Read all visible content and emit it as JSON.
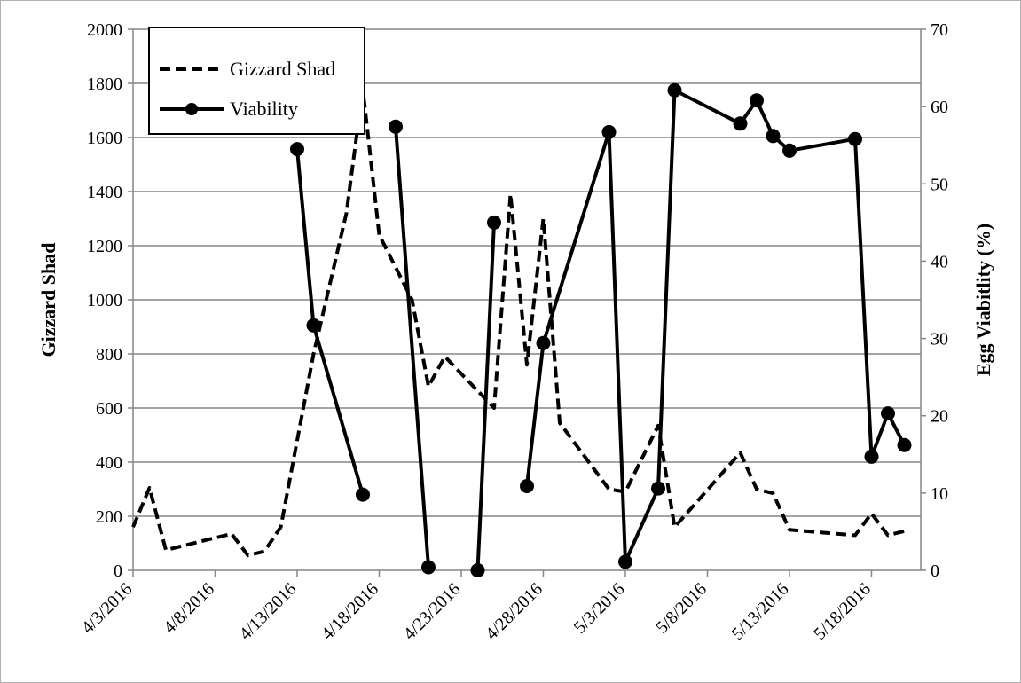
{
  "chart_data": {
    "type": "line",
    "title": "",
    "x_axis": {
      "type": "date",
      "range": [
        "2016-04-03",
        "2016-05-21"
      ],
      "tick_labels": [
        "4/3/2016",
        "4/8/2016",
        "4/13/2016",
        "4/18/2016",
        "4/23/2016",
        "4/28/2016",
        "5/3/2016",
        "5/8/2016",
        "5/13/2016",
        "5/18/2016"
      ],
      "tick_dates": [
        "2016-04-03",
        "2016-04-08",
        "2016-04-13",
        "2016-04-18",
        "2016-04-23",
        "2016-04-28",
        "2016-05-03",
        "2016-05-08",
        "2016-05-13",
        "2016-05-18"
      ]
    },
    "y_left": {
      "label": "Gizzard Shad",
      "range": [
        0,
        2000
      ],
      "tick_labels": [
        "0",
        "200",
        "400",
        "600",
        "800",
        "1000",
        "1200",
        "1400",
        "1600",
        "1800",
        "2000"
      ]
    },
    "y_right": {
      "label": "Egg Viabitlity (%)",
      "range": [
        0,
        70
      ],
      "tick_labels": [
        "0",
        "10",
        "20",
        "30",
        "40",
        "50",
        "60",
        "70"
      ]
    },
    "grid": "horizontal",
    "legend": "top-left",
    "series": [
      {
        "name": "Gizzard Shad",
        "axis": "left",
        "style": "dashed",
        "color": "#000000",
        "points": [
          [
            "2016-04-03",
            160
          ],
          [
            "2016-04-04",
            305
          ],
          [
            "2016-04-05",
            75
          ],
          [
            "2016-04-09",
            135
          ],
          [
            "2016-04-10",
            55
          ],
          [
            "2016-04-11",
            70
          ],
          [
            "2016-04-12",
            160
          ],
          [
            "2016-04-14",
            800
          ],
          [
            "2016-04-16",
            1320
          ],
          [
            "2016-04-17",
            1780
          ],
          [
            "2016-04-18",
            1240
          ],
          [
            "2016-04-20",
            1000
          ],
          [
            "2016-04-21",
            680
          ],
          [
            "2016-04-22",
            790
          ],
          [
            "2016-04-25",
            600
          ],
          [
            "2016-04-26",
            1390
          ],
          [
            "2016-04-27",
            760
          ],
          [
            "2016-04-28",
            1300
          ],
          [
            "2016-04-29",
            545
          ],
          [
            "2016-05-02",
            300
          ],
          [
            "2016-05-03",
            290
          ],
          [
            "2016-05-05",
            535
          ],
          [
            "2016-05-06",
            160
          ],
          [
            "2016-05-10",
            435
          ],
          [
            "2016-05-11",
            300
          ],
          [
            "2016-05-12",
            285
          ],
          [
            "2016-05-13",
            150
          ],
          [
            "2016-05-17",
            130
          ],
          [
            "2016-05-18",
            210
          ],
          [
            "2016-05-19",
            130
          ],
          [
            "2016-05-20",
            145
          ]
        ]
      },
      {
        "name": "Viability",
        "axis": "right",
        "style": "solid-markers",
        "color": "#000000",
        "points": [
          [
            "2016-04-13",
            54.5
          ],
          [
            "2016-04-14",
            31.7
          ],
          [
            "2016-04-17",
            9.8
          ],
          null,
          [
            "2016-04-19",
            57.4
          ],
          [
            "2016-04-21",
            0.4
          ],
          null,
          [
            "2016-04-24",
            0.0
          ],
          [
            "2016-04-25",
            45.0
          ],
          null,
          [
            "2016-04-27",
            10.9
          ],
          [
            "2016-04-28",
            29.4
          ],
          [
            "2016-05-02",
            56.7
          ],
          [
            "2016-05-03",
            1.1
          ],
          [
            "2016-05-05",
            10.6
          ],
          [
            "2016-05-06",
            62.1
          ],
          [
            "2016-05-10",
            57.8
          ],
          [
            "2016-05-11",
            60.8
          ],
          [
            "2016-05-12",
            56.2
          ],
          [
            "2016-05-13",
            54.3
          ],
          [
            "2016-05-17",
            55.8
          ],
          [
            "2016-05-18",
            14.7
          ],
          [
            "2016-05-19",
            20.3
          ],
          [
            "2016-05-20",
            16.2
          ]
        ]
      }
    ]
  }
}
